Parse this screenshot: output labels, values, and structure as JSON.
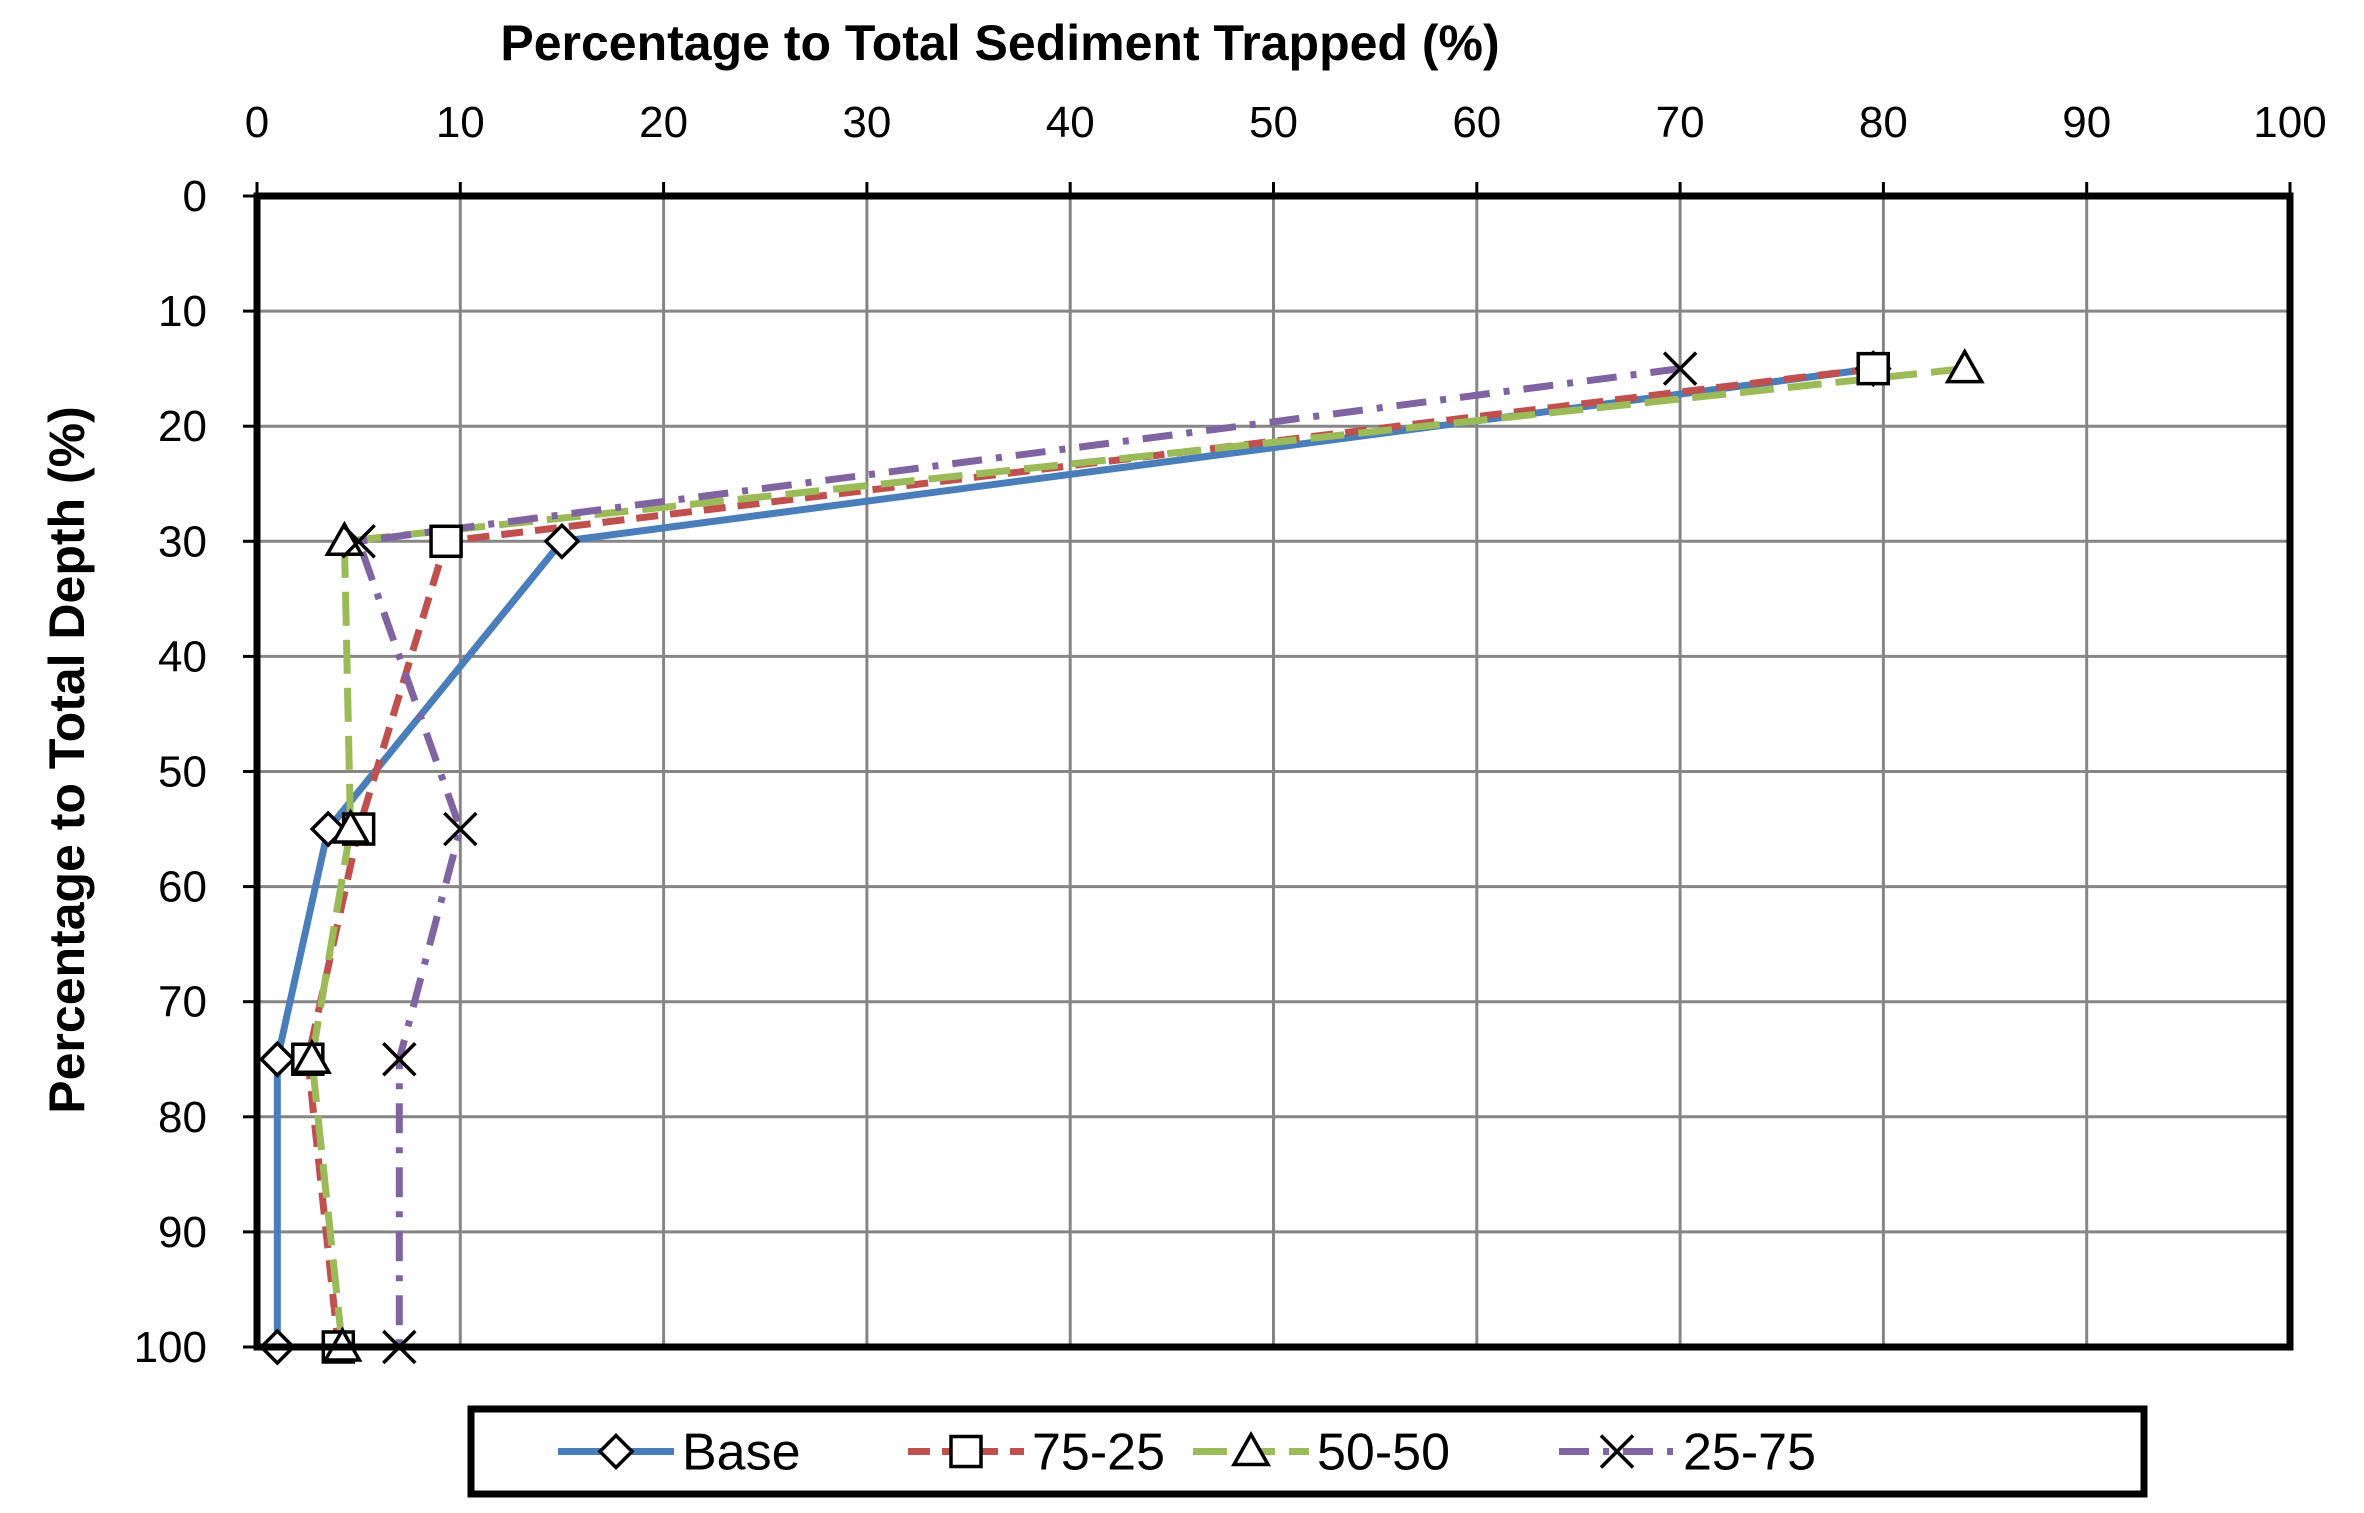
{
  "chart_data": {
    "type": "line",
    "xlabel": "Percentage to Total Sediment Trapped (%)",
    "ylabel": "Percentage to Total Depth (%)",
    "xlim": [
      0,
      100
    ],
    "ylim": [
      0,
      100
    ],
    "x_axis_position": "top",
    "y_axis_inverted": true,
    "grid": true,
    "legend_position": "bottom",
    "x_ticks": [
      "0",
      "10",
      "20",
      "30",
      "40",
      "50",
      "60",
      "70",
      "80",
      "90",
      "100"
    ],
    "y_ticks": [
      "0",
      "10",
      "20",
      "30",
      "40",
      "50",
      "60",
      "70",
      "80",
      "90",
      "100"
    ],
    "series": [
      {
        "name": "Base",
        "color": "#4a7ebb",
        "dash": "solid",
        "marker": "diamond",
        "points": [
          [
            79.5,
            15
          ],
          [
            15,
            30
          ],
          [
            3.5,
            55
          ],
          [
            1,
            75
          ],
          [
            1,
            100
          ]
        ]
      },
      {
        "name": "75-25",
        "color": "#c0504d",
        "dash": "dash",
        "marker": "square",
        "points": [
          [
            79.5,
            15
          ],
          [
            9.3,
            30
          ],
          [
            5,
            55
          ],
          [
            2.5,
            75
          ],
          [
            4,
            100
          ]
        ]
      },
      {
        "name": "50-50",
        "color": "#9bbb59",
        "dash": "longdash",
        "marker": "triangle",
        "points": [
          [
            84,
            15
          ],
          [
            4.3,
            30
          ],
          [
            4.6,
            55
          ],
          [
            2.7,
            75
          ],
          [
            4.2,
            100
          ]
        ]
      },
      {
        "name": "25-75",
        "color": "#8064a2",
        "dash": "dashdot",
        "marker": "x",
        "points": [
          [
            70,
            15
          ],
          [
            5,
            30
          ],
          [
            10,
            55
          ],
          [
            7,
            75
          ],
          [
            7,
            100
          ]
        ]
      }
    ]
  }
}
